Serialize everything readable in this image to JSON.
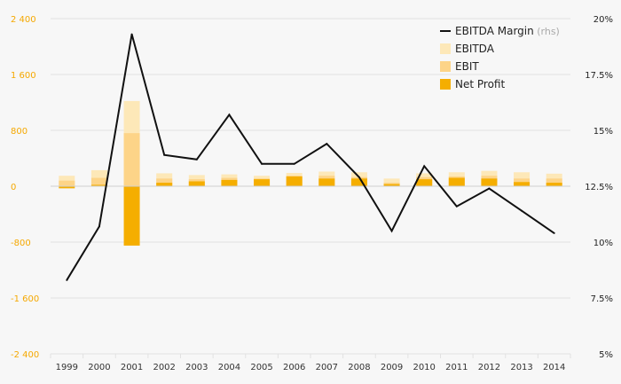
{
  "colors": {
    "ebitda": "#fde8b8",
    "ebit": "#fdd488",
    "net_profit": "#f5ae00",
    "margin_line": "#111111",
    "left_axis_text": "#f5a800",
    "grid": "#e2e2e2"
  },
  "legend": {
    "placement": "top-right",
    "items": [
      {
        "key": "margin",
        "label": "EBITDA Margin",
        "suffix": "(rhs)",
        "type": "line"
      },
      {
        "key": "ebitda",
        "label": "EBITDA",
        "type": "box"
      },
      {
        "key": "ebit",
        "label": "EBIT",
        "type": "box"
      },
      {
        "key": "net_profit",
        "label": "Net Profit",
        "type": "box"
      }
    ]
  },
  "chart_data": {
    "type": "bar",
    "categories": [
      "1999",
      "2000",
      "2001",
      "2002",
      "2003",
      "2004",
      "2005",
      "2006",
      "2007",
      "2008",
      "2009",
      "2010",
      "2011",
      "2012",
      "2013",
      "2014"
    ],
    "series": [
      {
        "name": "EBITDA",
        "axis": "left",
        "values": [
          150,
          230,
          1220,
          185,
          160,
          170,
          150,
          190,
          210,
          200,
          110,
          185,
          200,
          220,
          200,
          180
        ]
      },
      {
        "name": "EBIT",
        "axis": "left",
        "values": [
          80,
          120,
          760,
          110,
          100,
          120,
          110,
          150,
          150,
          130,
          50,
          130,
          140,
          150,
          110,
          110
        ]
      },
      {
        "name": "Net Profit",
        "axis": "left",
        "values": [
          -30,
          20,
          -850,
          50,
          70,
          90,
          100,
          140,
          110,
          110,
          30,
          100,
          120,
          110,
          60,
          50
        ]
      },
      {
        "name": "EBITDA Margin",
        "axis": "right",
        "type": "line",
        "values": [
          8.3,
          10.7,
          19.3,
          13.9,
          13.7,
          15.7,
          13.5,
          13.5,
          14.4,
          12.9,
          10.5,
          13.4,
          11.6,
          12.4,
          11.4,
          10.4
        ]
      }
    ],
    "y_left": {
      "min": -2400,
      "max": 2400,
      "ticks": [
        2400,
        1600,
        800,
        0,
        -800,
        -1600,
        -2400
      ],
      "tick_labels": [
        "2 400",
        "1 600",
        "800",
        "0",
        "-800",
        "-1 600",
        "-2 400"
      ]
    },
    "y_right": {
      "min": 5,
      "max": 20,
      "ticks": [
        20,
        17.5,
        15,
        12.5,
        10,
        7.5,
        5
      ],
      "tick_labels": [
        "20%",
        "17.5%",
        "15%",
        "12.5%",
        "10%",
        "7.5%",
        "5%"
      ]
    },
    "grid": true
  }
}
